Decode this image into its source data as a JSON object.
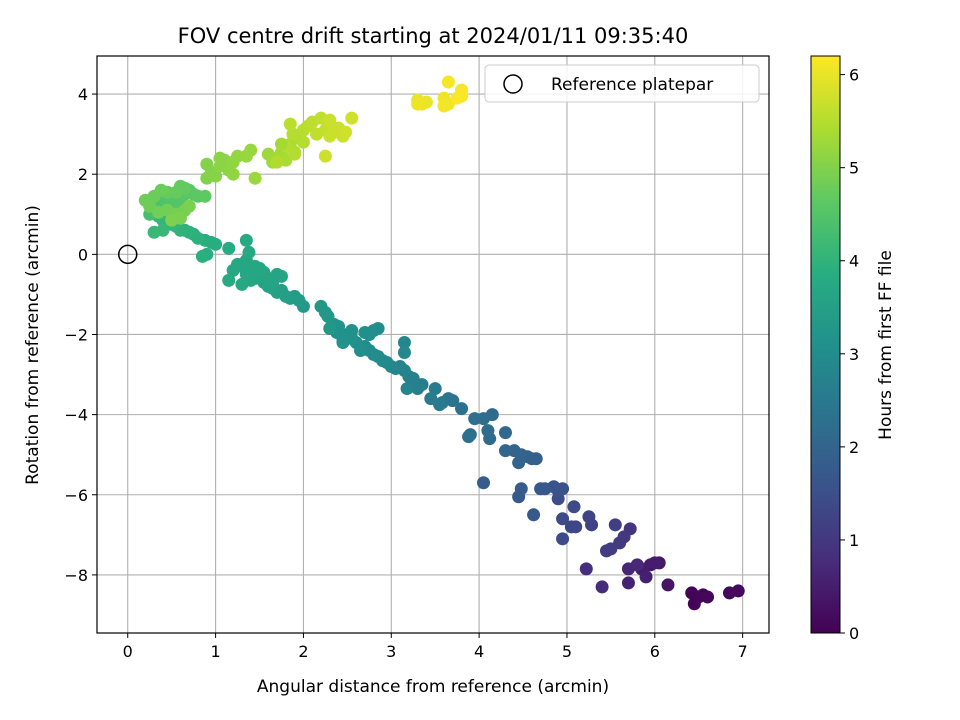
{
  "chart_data": {
    "type": "scatter",
    "title": "FOV centre drift starting at 2024/01/11 09:35:40",
    "xlabel": "Angular distance from reference (arcmin)",
    "ylabel": "Rotation from reference (arcmin)",
    "xlim": [
      -0.35,
      7.3
    ],
    "ylim": [
      -9.45,
      4.95
    ],
    "xticks": [
      "0",
      "1",
      "2",
      "3",
      "4",
      "5",
      "6",
      "7"
    ],
    "yticks": [
      "−8",
      "−6",
      "−4",
      "−2",
      "0",
      "2",
      "4"
    ],
    "grid": true,
    "legend": {
      "placement": "top-right",
      "entries": [
        "Reference platepar"
      ]
    },
    "reference_point": {
      "x": 0,
      "y": 0
    },
    "colorbar": {
      "label": "Hours from first FF file",
      "range": [
        0,
        6.2
      ],
      "ticks": [
        "0",
        "1",
        "2",
        "3",
        "4",
        "5",
        "6"
      ],
      "colormap": "viridis"
    },
    "points": [
      [
        6.45,
        -8.72,
        0.03
      ],
      [
        6.42,
        -8.45,
        0.05
      ],
      [
        6.5,
        -8.55,
        0.07
      ],
      [
        6.55,
        -8.5,
        0.09
      ],
      [
        6.6,
        -8.55,
        0.1
      ],
      [
        6.85,
        -8.45,
        0.12
      ],
      [
        6.95,
        -8.4,
        0.15
      ],
      [
        6.15,
        -8.25,
        0.35
      ],
      [
        6.05,
        -7.7,
        0.4
      ],
      [
        5.95,
        -7.75,
        0.45
      ],
      [
        5.85,
        -7.85,
        0.5
      ],
      [
        5.9,
        -8.05,
        0.55
      ],
      [
        5.7,
        -8.2,
        0.6
      ],
      [
        5.7,
        -7.85,
        0.65
      ],
      [
        5.8,
        -7.75,
        0.7
      ],
      [
        5.4,
        -8.3,
        0.75
      ],
      [
        5.22,
        -7.85,
        0.8
      ],
      [
        6.0,
        -7.7,
        0.5
      ],
      [
        5.72,
        -6.85,
        0.95
      ],
      [
        5.65,
        -7.05,
        1.0
      ],
      [
        5.6,
        -7.2,
        1.05
      ],
      [
        5.5,
        -7.35,
        1.1
      ],
      [
        5.45,
        -7.4,
        1.12
      ],
      [
        5.55,
        -6.75,
        1.15
      ],
      [
        5.28,
        -6.75,
        1.2
      ],
      [
        5.25,
        -6.55,
        1.25
      ],
      [
        5.1,
        -6.8,
        1.3
      ],
      [
        5.05,
        -6.8,
        1.33
      ],
      [
        5.08,
        -6.3,
        1.36
      ],
      [
        4.95,
        -6.6,
        1.4
      ],
      [
        4.95,
        -7.1,
        1.42
      ],
      [
        4.9,
        -6.1,
        1.45
      ],
      [
        4.95,
        -5.85,
        1.5
      ],
      [
        4.9,
        -5.9,
        1.55
      ],
      [
        4.85,
        -5.8,
        1.6
      ],
      [
        4.75,
        -5.85,
        1.65
      ],
      [
        4.7,
        -5.85,
        1.7
      ],
      [
        4.62,
        -6.5,
        1.72
      ],
      [
        4.45,
        -6.05,
        1.75
      ],
      [
        4.48,
        -5.85,
        1.78
      ],
      [
        4.05,
        -5.7,
        1.8
      ],
      [
        4.65,
        -5.1,
        1.85
      ],
      [
        4.6,
        -5.1,
        1.9
      ],
      [
        4.55,
        -5.05,
        1.92
      ],
      [
        4.48,
        -5.0,
        1.95
      ],
      [
        4.45,
        -5.2,
        1.98
      ],
      [
        4.4,
        -4.9,
        2.0
      ],
      [
        4.3,
        -4.9,
        2.05
      ],
      [
        4.3,
        -4.45,
        2.1
      ],
      [
        4.15,
        -4.0,
        2.12
      ],
      [
        4.12,
        -4.6,
        2.15
      ],
      [
        4.1,
        -4.4,
        2.18
      ],
      [
        4.05,
        -4.1,
        2.2
      ],
      [
        3.95,
        -4.1,
        2.22
      ],
      [
        3.9,
        -4.5,
        2.25
      ],
      [
        3.88,
        -4.55,
        2.28
      ],
      [
        3.8,
        -3.85,
        2.3
      ],
      [
        3.7,
        -3.65,
        2.35
      ],
      [
        3.65,
        -3.6,
        2.4
      ],
      [
        3.58,
        -3.7,
        2.45
      ],
      [
        3.55,
        -3.75,
        2.5
      ],
      [
        3.5,
        -3.35,
        2.52
      ],
      [
        3.45,
        -3.6,
        2.55
      ],
      [
        3.35,
        -3.25,
        2.6
      ],
      [
        3.3,
        -3.35,
        2.65
      ],
      [
        3.25,
        -3.1,
        2.68
      ],
      [
        3.2,
        -3.05,
        2.7
      ],
      [
        3.18,
        -3.35,
        2.72
      ],
      [
        3.15,
        -2.9,
        2.75
      ],
      [
        3.1,
        -2.8,
        2.78
      ],
      [
        3.05,
        -2.85,
        2.8
      ],
      [
        3.0,
        -2.8,
        2.82
      ],
      [
        3.15,
        -2.2,
        2.85
      ],
      [
        3.15,
        -2.45,
        2.87
      ],
      [
        2.95,
        -2.7,
        2.9
      ],
      [
        2.9,
        -2.65,
        2.92
      ],
      [
        2.85,
        -2.55,
        2.95
      ],
      [
        2.8,
        -2.5,
        2.98
      ],
      [
        2.75,
        -2.4,
        3.0
      ],
      [
        2.7,
        -2.3,
        3.02
      ],
      [
        2.65,
        -2.4,
        3.05
      ],
      [
        2.6,
        -2.2,
        3.08
      ],
      [
        2.55,
        -2.1,
        3.1
      ],
      [
        2.5,
        -2.0,
        3.12
      ],
      [
        2.45,
        -2.15,
        3.15
      ],
      [
        2.4,
        -1.8,
        3.18
      ],
      [
        2.35,
        -1.75,
        3.2
      ],
      [
        2.32,
        -1.8,
        3.22
      ],
      [
        2.28,
        -1.55,
        3.25
      ],
      [
        2.8,
        -1.9,
        3.0
      ],
      [
        2.85,
        -1.85,
        3.02
      ],
      [
        2.75,
        -2.0,
        3.05
      ],
      [
        2.7,
        -1.95,
        3.07
      ],
      [
        2.55,
        -1.9,
        3.1
      ],
      [
        2.45,
        -2.2,
        3.12
      ],
      [
        2.38,
        -1.95,
        3.14
      ],
      [
        2.25,
        -1.45,
        3.28
      ],
      [
        2.2,
        -1.3,
        3.3
      ],
      [
        2.3,
        -1.85,
        3.3
      ],
      [
        2.0,
        -1.3,
        3.35
      ],
      [
        1.95,
        -1.15,
        3.38
      ],
      [
        1.9,
        -1.05,
        3.4
      ],
      [
        1.85,
        -1.1,
        3.42
      ],
      [
        1.8,
        -1.05,
        3.45
      ],
      [
        1.75,
        -0.9,
        3.48
      ],
      [
        1.7,
        -0.95,
        3.5
      ],
      [
        1.65,
        -0.85,
        3.52
      ],
      [
        1.6,
        -0.8,
        3.55
      ],
      [
        1.55,
        -0.7,
        3.57
      ],
      [
        1.5,
        -0.55,
        3.6
      ],
      [
        1.45,
        -0.6,
        3.62
      ],
      [
        1.4,
        -0.45,
        3.64
      ],
      [
        1.35,
        -0.5,
        3.66
      ],
      [
        1.3,
        -0.3,
        3.68
      ],
      [
        1.25,
        -0.25,
        3.7
      ],
      [
        1.2,
        -0.4,
        3.72
      ],
      [
        1.15,
        -0.65,
        3.74
      ],
      [
        1.3,
        -0.75,
        3.72
      ],
      [
        1.4,
        -0.65,
        3.7
      ],
      [
        1.5,
        -0.35,
        3.68
      ],
      [
        1.55,
        -0.45,
        3.66
      ],
      [
        1.6,
        -0.6,
        3.64
      ],
      [
        1.65,
        -0.7,
        3.62
      ],
      [
        1.7,
        -0.5,
        3.6
      ],
      [
        1.75,
        -0.55,
        3.6
      ],
      [
        1.35,
        -0.15,
        3.7
      ],
      [
        1.45,
        -0.3,
        3.68
      ],
      [
        1.35,
        0.35,
        3.76
      ],
      [
        1.38,
        0.05,
        3.75
      ],
      [
        1.15,
        0.15,
        3.8
      ],
      [
        1.0,
        0.25,
        3.82
      ],
      [
        0.95,
        0.3,
        3.84
      ],
      [
        0.88,
        0.35,
        3.86
      ],
      [
        0.9,
        0.0,
        3.88
      ],
      [
        0.85,
        -0.05,
        3.9
      ],
      [
        0.8,
        0.4,
        3.92
      ],
      [
        0.75,
        0.5,
        3.94
      ],
      [
        0.7,
        0.55,
        3.96
      ],
      [
        0.65,
        0.6,
        3.98
      ],
      [
        0.6,
        0.6,
        4.0
      ],
      [
        0.55,
        0.7,
        4.02
      ],
      [
        0.5,
        0.75,
        4.04
      ],
      [
        0.45,
        0.8,
        4.06
      ],
      [
        0.4,
        0.85,
        4.08
      ],
      [
        0.35,
        0.95,
        4.1
      ],
      [
        0.3,
        0.55,
        4.12
      ],
      [
        0.4,
        0.6,
        4.14
      ],
      [
        0.25,
        1.0,
        4.3
      ],
      [
        0.3,
        1.1,
        4.35
      ],
      [
        0.35,
        1.2,
        4.4
      ],
      [
        0.4,
        1.3,
        4.42
      ],
      [
        0.45,
        1.35,
        4.45
      ],
      [
        0.5,
        1.25,
        4.48
      ],
      [
        0.55,
        1.4,
        4.5
      ],
      [
        0.6,
        1.3,
        4.52
      ],
      [
        0.65,
        1.5,
        4.55
      ],
      [
        0.7,
        1.6,
        4.58
      ],
      [
        0.75,
        1.5,
        4.6
      ],
      [
        0.8,
        1.45,
        4.62
      ],
      [
        0.88,
        1.45,
        4.65
      ],
      [
        0.6,
        1.7,
        4.68
      ],
      [
        0.65,
        1.65,
        4.7
      ],
      [
        0.55,
        1.55,
        4.72
      ],
      [
        0.45,
        1.55,
        4.74
      ],
      [
        0.38,
        1.6,
        4.76
      ],
      [
        0.3,
        1.45,
        4.78
      ],
      [
        0.2,
        1.35,
        4.8
      ],
      [
        0.25,
        1.2,
        4.82
      ],
      [
        0.35,
        1.05,
        4.84
      ],
      [
        0.45,
        1.1,
        4.86
      ],
      [
        0.55,
        1.0,
        4.88
      ],
      [
        0.65,
        1.1,
        4.9
      ],
      [
        0.7,
        1.2,
        4.92
      ],
      [
        0.6,
        0.9,
        4.94
      ],
      [
        0.5,
        0.85,
        4.96
      ],
      [
        0.9,
        1.9,
        5.0
      ],
      [
        0.95,
        2.05,
        5.02
      ],
      [
        1.0,
        1.95,
        5.05
      ],
      [
        1.05,
        2.2,
        5.08
      ],
      [
        1.1,
        2.35,
        5.1
      ],
      [
        1.15,
        2.1,
        5.12
      ],
      [
        1.2,
        2.3,
        5.15
      ],
      [
        1.25,
        2.45,
        5.18
      ],
      [
        1.35,
        2.45,
        5.2
      ],
      [
        1.4,
        2.6,
        5.22
      ],
      [
        1.45,
        1.9,
        5.25
      ],
      [
        1.6,
        2.5,
        5.28
      ],
      [
        1.65,
        2.3,
        5.3
      ],
      [
        1.7,
        2.4,
        5.32
      ],
      [
        1.75,
        2.55,
        5.35
      ],
      [
        1.8,
        2.35,
        5.38
      ],
      [
        1.85,
        2.75,
        5.4
      ],
      [
        1.9,
        2.55,
        5.42
      ],
      [
        1.95,
        2.9,
        5.45
      ],
      [
        2.0,
        2.8,
        5.48
      ],
      [
        1.9,
        2.5,
        5.5
      ],
      [
        1.8,
        2.7,
        5.5
      ],
      [
        1.7,
        2.3,
        5.45
      ],
      [
        1.05,
        2.4,
        5.1
      ],
      [
        1.2,
        2.0,
        5.15
      ],
      [
        0.9,
        2.25,
        5.02
      ],
      [
        1.75,
        2.75,
        5.35
      ],
      [
        2.0,
        3.1,
        5.52
      ],
      [
        1.88,
        3.0,
        5.5
      ],
      [
        2.05,
        3.2,
        5.55
      ],
      [
        2.1,
        3.3,
        5.58
      ],
      [
        2.15,
        3.0,
        5.6
      ],
      [
        2.2,
        3.4,
        5.62
      ],
      [
        2.25,
        3.1,
        5.64
      ],
      [
        2.3,
        3.2,
        5.66
      ],
      [
        2.35,
        3.05,
        5.68
      ],
      [
        2.4,
        3.15,
        5.7
      ],
      [
        2.45,
        2.95,
        5.72
      ],
      [
        2.25,
        2.45,
        5.74
      ],
      [
        2.55,
        3.4,
        5.76
      ],
      [
        2.3,
        2.95,
        5.7
      ],
      [
        2.4,
        3.05,
        5.72
      ],
      [
        2.48,
        3.05,
        5.75
      ],
      [
        1.85,
        3.25,
        5.55
      ],
      [
        2.3,
        3.35,
        5.7
      ],
      [
        3.3,
        3.85,
        6.0
      ],
      [
        3.35,
        3.75,
        6.02
      ],
      [
        3.4,
        3.8,
        6.04
      ],
      [
        3.3,
        3.75,
        6.05
      ],
      [
        3.6,
        3.9,
        6.06
      ],
      [
        3.65,
        3.75,
        6.08
      ],
      [
        3.6,
        3.7,
        6.1
      ],
      [
        3.65,
        4.3,
        6.12
      ],
      [
        3.8,
        4.1,
        6.14
      ],
      [
        3.8,
        3.95,
        6.16
      ],
      [
        3.75,
        3.9,
        6.18
      ]
    ]
  }
}
